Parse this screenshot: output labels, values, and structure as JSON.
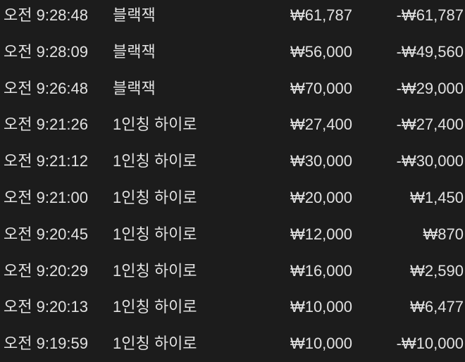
{
  "rows": [
    {
      "time": "오전 9:28:48",
      "game": "블랙잭",
      "bet": "₩61,787",
      "result": "-₩61,787"
    },
    {
      "time": "오전 9:28:09",
      "game": "블랙잭",
      "bet": "₩56,000",
      "result": "-₩49,560"
    },
    {
      "time": "오전 9:26:48",
      "game": "블랙잭",
      "bet": "₩70,000",
      "result": "-₩29,000"
    },
    {
      "time": "오전 9:21:26",
      "game": "1인칭 하이로",
      "bet": "₩27,400",
      "result": "-₩27,400"
    },
    {
      "time": "오전 9:21:12",
      "game": "1인칭 하이로",
      "bet": "₩30,000",
      "result": "-₩30,000"
    },
    {
      "time": "오전 9:21:00",
      "game": "1인칭 하이로",
      "bet": "₩20,000",
      "result": "₩1,450"
    },
    {
      "time": "오전 9:20:45",
      "game": "1인칭 하이로",
      "bet": "₩12,000",
      "result": "₩870"
    },
    {
      "time": "오전 9:20:29",
      "game": "1인칭 하이로",
      "bet": "₩16,000",
      "result": "₩2,590"
    },
    {
      "time": "오전 9:20:13",
      "game": "1인칭 하이로",
      "bet": "₩10,000",
      "result": "₩6,477"
    },
    {
      "time": "오전 9:19:59",
      "game": "1인칭 하이로",
      "bet": "₩10,000",
      "result": "-₩10,000"
    }
  ]
}
